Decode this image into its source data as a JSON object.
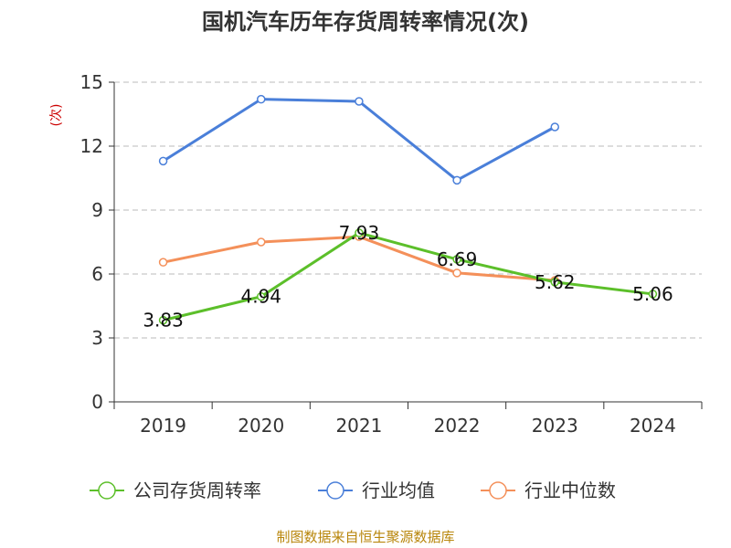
{
  "chart_data": {
    "type": "line",
    "title": "国机汽车历年存货周转率情况(次)",
    "ylabel": "(次)",
    "xlabel": "",
    "categories": [
      "2019",
      "2020",
      "2021",
      "2022",
      "2023",
      "2024"
    ],
    "ylim": [
      0,
      15
    ],
    "yticks": [
      0,
      3,
      6,
      9,
      12,
      15
    ],
    "grid": true,
    "legend_position": "bottom",
    "series": [
      {
        "name": "公司存货周转率",
        "color": "#5cbf2a",
        "values": [
          3.83,
          4.94,
          7.93,
          6.69,
          5.62,
          5.06
        ],
        "labels": [
          "3.83",
          "4.94",
          "7.93",
          "6.69",
          "5.62",
          "5.06"
        ]
      },
      {
        "name": "行业均值",
        "color": "#4a7fd9",
        "values": [
          11.3,
          14.2,
          14.1,
          10.4,
          12.9,
          null
        ]
      },
      {
        "name": "行业中位数",
        "color": "#f4905a",
        "values": [
          6.55,
          7.5,
          7.75,
          6.05,
          5.7,
          null
        ]
      }
    ]
  },
  "source": "制图数据来自恒生聚源数据库"
}
